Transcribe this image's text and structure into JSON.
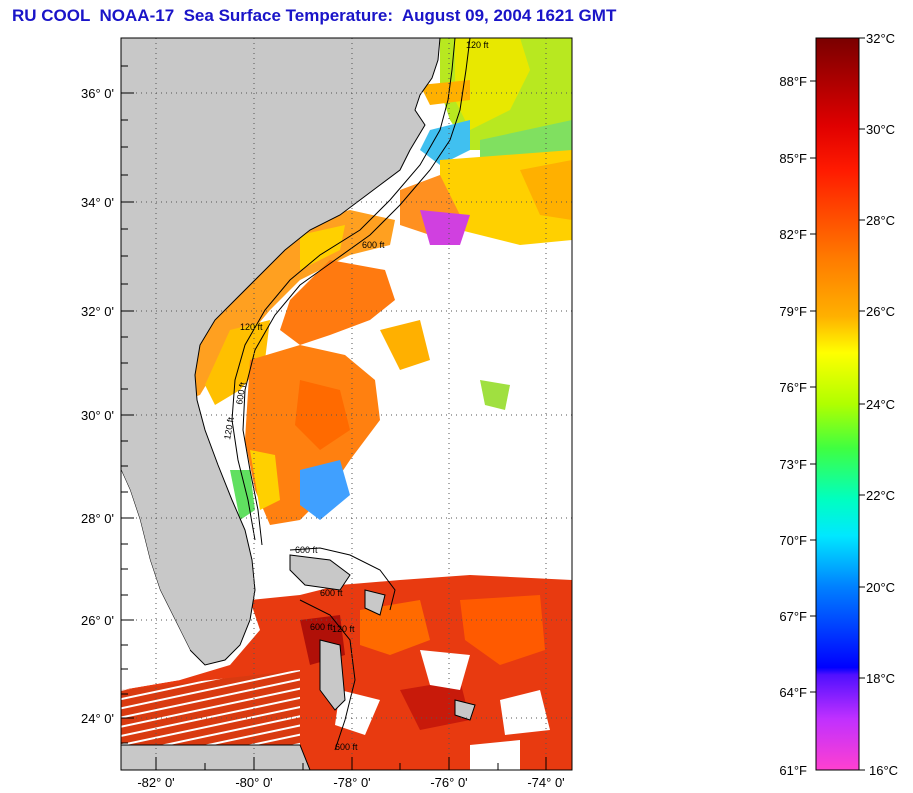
{
  "title": "RU COOL  NOAA-17  Sea Surface Temperature:  August 09, 2004 1621 GMT",
  "map": {
    "lat_labels": [
      "36° 0'",
      "34° 0'",
      "32° 0'",
      "30° 0'",
      "28° 0'",
      "26° 0'",
      "24° 0'"
    ],
    "lon_labels": [
      "-82° 0'",
      "-80° 0'",
      "-78° 0'",
      "-76° 0'",
      "-74° 0'"
    ],
    "contour_labels": [
      "120 ft",
      "600 ft",
      "120 ft",
      "600 ft",
      "120 ft",
      "600 ft",
      "600 ft",
      "600 ft",
      "120 ft",
      "600 ft"
    ],
    "colors": {
      "land": "#c8c8c8",
      "no_data": "#ffffff",
      "grid": "#555555"
    }
  },
  "colorbar": {
    "fahrenheit_labels": [
      "88°F",
      "85°F",
      "82°F",
      "79°F",
      "76°F",
      "73°F",
      "70°F",
      "67°F",
      "64°F",
      "61°F"
    ],
    "celsius_labels": [
      "32°C",
      "30°C",
      "28°C",
      "26°C",
      "24°C",
      "22°C",
      "20°C",
      "18°C",
      "16°C"
    ],
    "range_celsius": [
      16,
      32
    ]
  }
}
